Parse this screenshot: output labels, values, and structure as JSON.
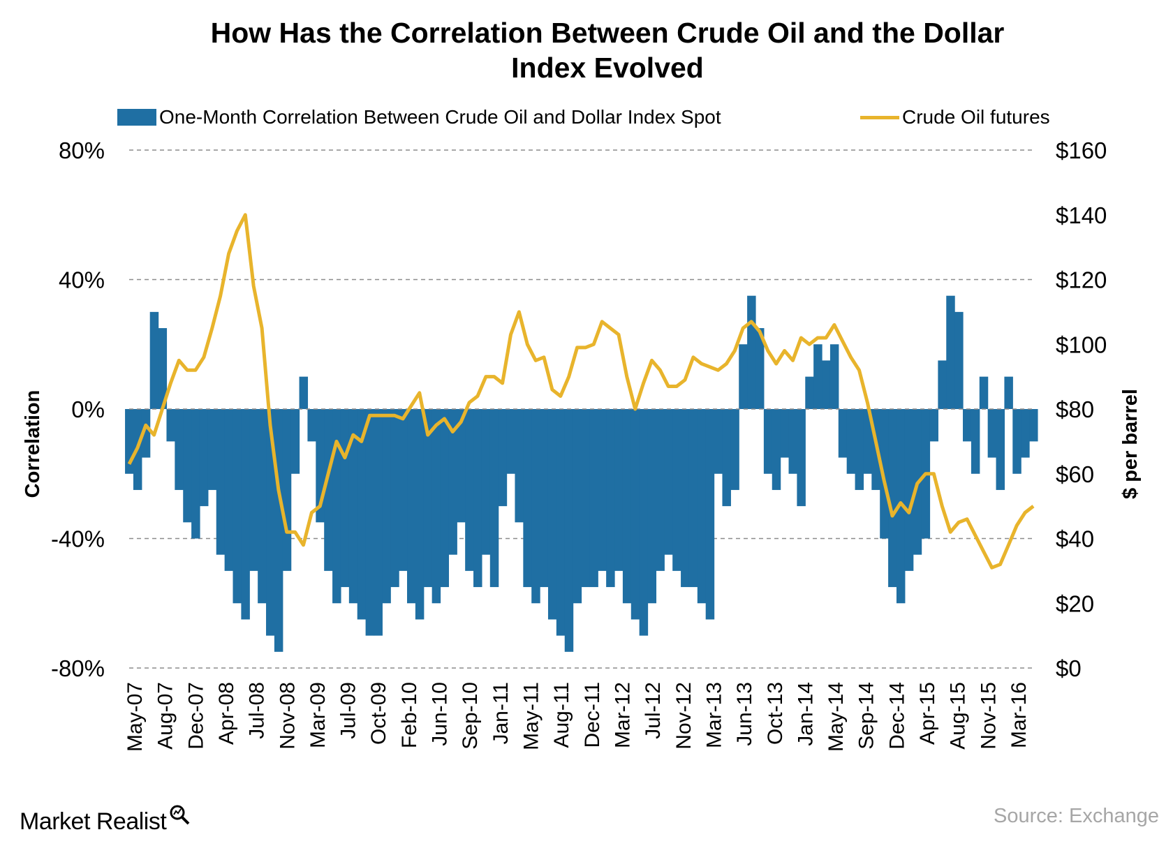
{
  "title_lines": [
    "How Has the Correlation Between Crude Oil and the Dollar",
    "Index Evolved"
  ],
  "legend": {
    "bars_label": "One-Month Correlation Between Crude Oil and Dollar Index Spot",
    "line_label": "Crude Oil futures"
  },
  "brand": "Market Realist",
  "source": "Source: Exchange",
  "colors": {
    "bars": "#1f6fa3",
    "line": "#e8b42c",
    "grid": "#8c8c8c",
    "source": "#a6a6a6"
  },
  "chart_data": {
    "type": "bar+line",
    "title": "How Has the Correlation Between Crude Oil and the Dollar Index Evolved",
    "grid": "dashed horizontal",
    "legend_position": "top",
    "left_axis": {
      "label": "Correlation",
      "ticks": [
        "80%",
        "40%",
        "0%",
        "-40%",
        "-80%"
      ],
      "range": [
        -80,
        80
      ],
      "unit": "%"
    },
    "right_axis": {
      "label": "$ per barrel",
      "ticks": [
        "$160",
        "$140",
        "$120",
        "$100",
        "$80",
        "$60",
        "$40",
        "$20",
        "$0"
      ],
      "range": [
        0,
        160
      ],
      "unit": "$"
    },
    "x_tick_labels": [
      "May-07",
      "Aug-07",
      "Dec-07",
      "Apr-08",
      "Jul-08",
      "Nov-08",
      "Mar-09",
      "Jul-09",
      "Oct-09",
      "Feb-10",
      "Jun-10",
      "Sep-10",
      "Jan-11",
      "May-11",
      "Aug-11",
      "Dec-11",
      "Mar-12",
      "Jul-12",
      "Nov-12",
      "Mar-13",
      "Jun-13",
      "Oct-13",
      "Jan-14",
      "May-14",
      "Sep-14",
      "Dec-14",
      "Apr-15",
      "Aug-15",
      "Nov-15",
      "Mar-16"
    ],
    "x_range": [
      "2007-05",
      "2016-06"
    ],
    "series": [
      {
        "name": "One-Month Correlation Between Crude Oil and Dollar Index Spot",
        "type": "bar",
        "axis": "left",
        "points": [
          [
            "2007-05",
            -20
          ],
          [
            "2007-06",
            -25
          ],
          [
            "2007-07",
            -15
          ],
          [
            "2007-08",
            30
          ],
          [
            "2007-09",
            25
          ],
          [
            "2007-10",
            -10
          ],
          [
            "2007-11",
            -25
          ],
          [
            "2007-12",
            -35
          ],
          [
            "2008-01",
            -40
          ],
          [
            "2008-02",
            -30
          ],
          [
            "2008-03",
            -25
          ],
          [
            "2008-04",
            -45
          ],
          [
            "2008-05",
            -50
          ],
          [
            "2008-06",
            -60
          ],
          [
            "2008-07",
            -65
          ],
          [
            "2008-08",
            -50
          ],
          [
            "2008-09",
            -60
          ],
          [
            "2008-10",
            -70
          ],
          [
            "2008-11",
            -75
          ],
          [
            "2008-12",
            -50
          ],
          [
            "2009-01",
            -20
          ],
          [
            "2009-02",
            10
          ],
          [
            "2009-03",
            -10
          ],
          [
            "2009-04",
            -35
          ],
          [
            "2009-05",
            -50
          ],
          [
            "2009-06",
            -60
          ],
          [
            "2009-07",
            -55
          ],
          [
            "2009-08",
            -60
          ],
          [
            "2009-09",
            -65
          ],
          [
            "2009-10",
            -70
          ],
          [
            "2009-11",
            -70
          ],
          [
            "2009-12",
            -60
          ],
          [
            "2010-01",
            -55
          ],
          [
            "2010-02",
            -50
          ],
          [
            "2010-03",
            -60
          ],
          [
            "2010-04",
            -65
          ],
          [
            "2010-05",
            -55
          ],
          [
            "2010-06",
            -60
          ],
          [
            "2010-07",
            -55
          ],
          [
            "2010-08",
            -45
          ],
          [
            "2010-09",
            -35
          ],
          [
            "2010-10",
            -50
          ],
          [
            "2010-11",
            -55
          ],
          [
            "2010-12",
            -45
          ],
          [
            "2011-01",
            -55
          ],
          [
            "2011-02",
            -30
          ],
          [
            "2011-03",
            -20
          ],
          [
            "2011-04",
            -35
          ],
          [
            "2011-05",
            -55
          ],
          [
            "2011-06",
            -60
          ],
          [
            "2011-07",
            -55
          ],
          [
            "2011-08",
            -65
          ],
          [
            "2011-09",
            -70
          ],
          [
            "2011-10",
            -75
          ],
          [
            "2011-11",
            -60
          ],
          [
            "2011-12",
            -55
          ],
          [
            "2012-01",
            -55
          ],
          [
            "2012-02",
            -50
          ],
          [
            "2012-03",
            -55
          ],
          [
            "2012-04",
            -50
          ],
          [
            "2012-05",
            -60
          ],
          [
            "2012-06",
            -65
          ],
          [
            "2012-07",
            -70
          ],
          [
            "2012-08",
            -60
          ],
          [
            "2012-09",
            -50
          ],
          [
            "2012-10",
            -45
          ],
          [
            "2012-11",
            -50
          ],
          [
            "2012-12",
            -55
          ],
          [
            "2013-01",
            -55
          ],
          [
            "2013-02",
            -60
          ],
          [
            "2013-03",
            -65
          ],
          [
            "2013-04",
            -20
          ],
          [
            "2013-05",
            -30
          ],
          [
            "2013-06",
            -25
          ],
          [
            "2013-07",
            20
          ],
          [
            "2013-08",
            35
          ],
          [
            "2013-09",
            25
          ],
          [
            "2013-10",
            -20
          ],
          [
            "2013-11",
            -25
          ],
          [
            "2013-12",
            -15
          ],
          [
            "2014-01",
            -20
          ],
          [
            "2014-02",
            -30
          ],
          [
            "2014-03",
            10
          ],
          [
            "2014-04",
            20
          ],
          [
            "2014-05",
            15
          ],
          [
            "2014-06",
            20
          ],
          [
            "2014-07",
            -15
          ],
          [
            "2014-08",
            -20
          ],
          [
            "2014-09",
            -25
          ],
          [
            "2014-10",
            -20
          ],
          [
            "2014-11",
            -25
          ],
          [
            "2014-12",
            -40
          ],
          [
            "2015-01",
            -55
          ],
          [
            "2015-02",
            -60
          ],
          [
            "2015-03",
            -50
          ],
          [
            "2015-04",
            -45
          ],
          [
            "2015-05",
            -40
          ],
          [
            "2015-06",
            -10
          ],
          [
            "2015-07",
            15
          ],
          [
            "2015-08",
            35
          ],
          [
            "2015-09",
            30
          ],
          [
            "2015-10",
            -10
          ],
          [
            "2015-11",
            -20
          ],
          [
            "2015-12",
            10
          ],
          [
            "2016-01",
            -15
          ],
          [
            "2016-02",
            -25
          ],
          [
            "2016-03",
            10
          ],
          [
            "2016-04",
            -20
          ],
          [
            "2016-05",
            -15
          ],
          [
            "2016-06",
            -10
          ]
        ]
      },
      {
        "name": "Crude Oil futures",
        "type": "line",
        "axis": "right",
        "points": [
          [
            "2007-05",
            63
          ],
          [
            "2007-06",
            68
          ],
          [
            "2007-07",
            75
          ],
          [
            "2007-08",
            72
          ],
          [
            "2007-09",
            80
          ],
          [
            "2007-10",
            88
          ],
          [
            "2007-11",
            95
          ],
          [
            "2007-12",
            92
          ],
          [
            "2008-01",
            92
          ],
          [
            "2008-02",
            96
          ],
          [
            "2008-03",
            105
          ],
          [
            "2008-04",
            115
          ],
          [
            "2008-05",
            128
          ],
          [
            "2008-06",
            135
          ],
          [
            "2008-07",
            140
          ],
          [
            "2008-08",
            118
          ],
          [
            "2008-09",
            105
          ],
          [
            "2008-10",
            75
          ],
          [
            "2008-11",
            55
          ],
          [
            "2008-12",
            42
          ],
          [
            "2009-01",
            42
          ],
          [
            "2009-02",
            38
          ],
          [
            "2009-03",
            48
          ],
          [
            "2009-04",
            50
          ],
          [
            "2009-05",
            60
          ],
          [
            "2009-06",
            70
          ],
          [
            "2009-07",
            65
          ],
          [
            "2009-08",
            72
          ],
          [
            "2009-09",
            70
          ],
          [
            "2009-10",
            78
          ],
          [
            "2009-11",
            78
          ],
          [
            "2009-12",
            78
          ],
          [
            "2010-01",
            78
          ],
          [
            "2010-02",
            77
          ],
          [
            "2010-03",
            81
          ],
          [
            "2010-04",
            85
          ],
          [
            "2010-05",
            72
          ],
          [
            "2010-06",
            75
          ],
          [
            "2010-07",
            77
          ],
          [
            "2010-08",
            73
          ],
          [
            "2010-09",
            76
          ],
          [
            "2010-10",
            82
          ],
          [
            "2010-11",
            84
          ],
          [
            "2010-12",
            90
          ],
          [
            "2011-01",
            90
          ],
          [
            "2011-02",
            88
          ],
          [
            "2011-03",
            103
          ],
          [
            "2011-04",
            110
          ],
          [
            "2011-05",
            100
          ],
          [
            "2011-06",
            95
          ],
          [
            "2011-07",
            96
          ],
          [
            "2011-08",
            86
          ],
          [
            "2011-09",
            84
          ],
          [
            "2011-10",
            90
          ],
          [
            "2011-11",
            99
          ],
          [
            "2011-12",
            99
          ],
          [
            "2012-01",
            100
          ],
          [
            "2012-02",
            107
          ],
          [
            "2012-03",
            105
          ],
          [
            "2012-04",
            103
          ],
          [
            "2012-05",
            90
          ],
          [
            "2012-06",
            80
          ],
          [
            "2012-07",
            88
          ],
          [
            "2012-08",
            95
          ],
          [
            "2012-09",
            92
          ],
          [
            "2012-10",
            87
          ],
          [
            "2012-11",
            87
          ],
          [
            "2012-12",
            89
          ],
          [
            "2013-01",
            96
          ],
          [
            "2013-02",
            94
          ],
          [
            "2013-03",
            93
          ],
          [
            "2013-04",
            92
          ],
          [
            "2013-05",
            94
          ],
          [
            "2013-06",
            98
          ],
          [
            "2013-07",
            105
          ],
          [
            "2013-08",
            107
          ],
          [
            "2013-09",
            104
          ],
          [
            "2013-10",
            98
          ],
          [
            "2013-11",
            94
          ],
          [
            "2013-12",
            98
          ],
          [
            "2014-01",
            95
          ],
          [
            "2014-02",
            102
          ],
          [
            "2014-03",
            100
          ],
          [
            "2014-04",
            102
          ],
          [
            "2014-05",
            102
          ],
          [
            "2014-06",
            106
          ],
          [
            "2014-07",
            101
          ],
          [
            "2014-08",
            96
          ],
          [
            "2014-09",
            92
          ],
          [
            "2014-10",
            82
          ],
          [
            "2014-11",
            70
          ],
          [
            "2014-12",
            58
          ],
          [
            "2015-01",
            47
          ],
          [
            "2015-02",
            51
          ],
          [
            "2015-03",
            48
          ],
          [
            "2015-04",
            57
          ],
          [
            "2015-05",
            60
          ],
          [
            "2015-06",
            60
          ],
          [
            "2015-07",
            50
          ],
          [
            "2015-08",
            42
          ],
          [
            "2015-09",
            45
          ],
          [
            "2015-10",
            46
          ],
          [
            "2015-11",
            41
          ],
          [
            "2015-12",
            36
          ],
          [
            "2016-01",
            31
          ],
          [
            "2016-02",
            32
          ],
          [
            "2016-03",
            38
          ],
          [
            "2016-04",
            44
          ],
          [
            "2016-05",
            48
          ],
          [
            "2016-06",
            50
          ]
        ]
      }
    ]
  }
}
